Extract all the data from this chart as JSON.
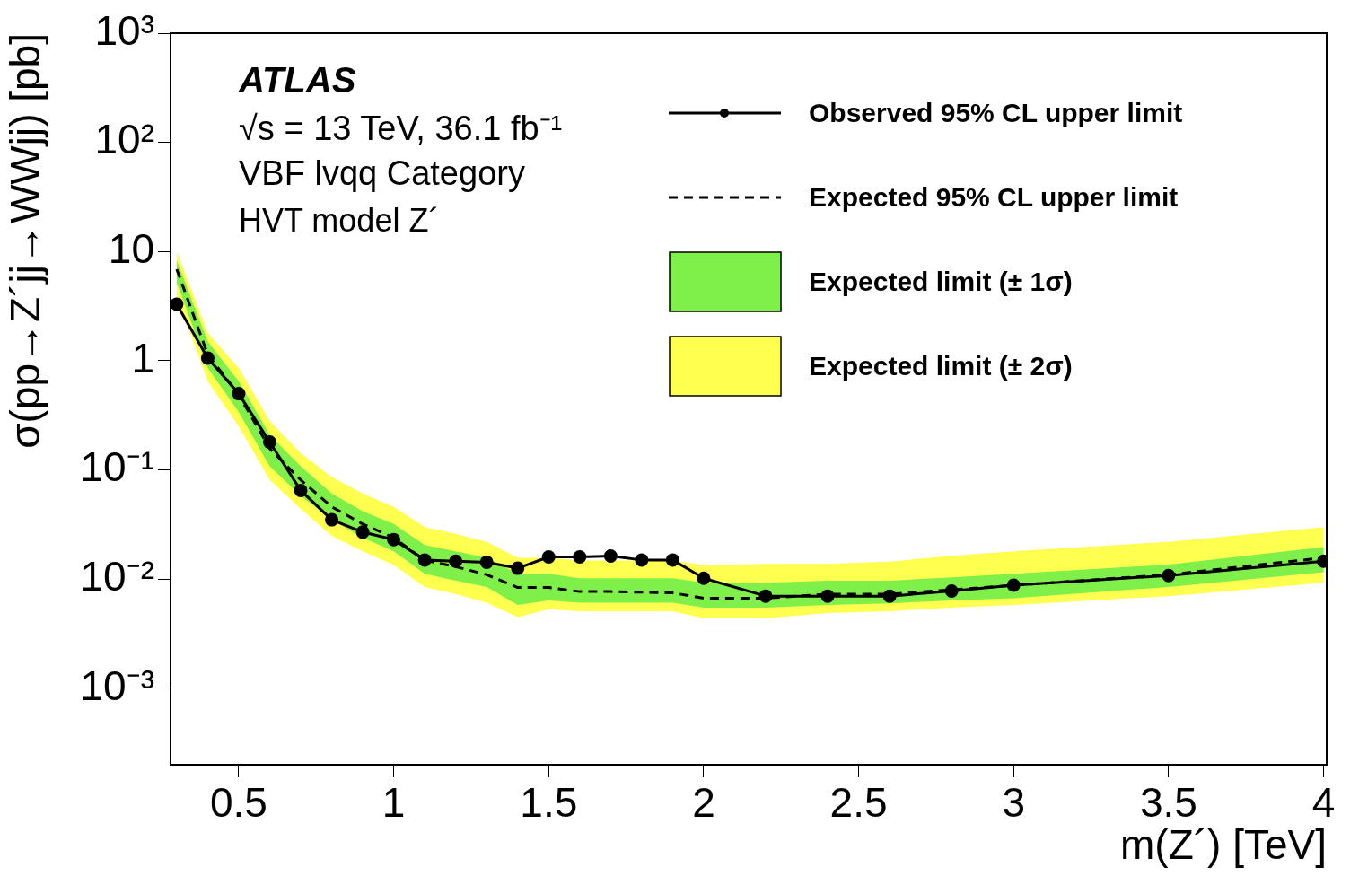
{
  "chart_data": {
    "type": "line",
    "log": "y",
    "grid": false,
    "legend": "top right",
    "xlabel": "m(Z´) [TeV]",
    "ylabel": "σ(pp→Z´jj→WWjj) [pb]",
    "annotations": [
      "ATLAS",
      "√s = 13 TeV, 36.1 fb⁻¹",
      "VBF lvqq Category",
      "HVT model Z´"
    ],
    "x": [
      0.3,
      0.4,
      0.5,
      0.6,
      0.7,
      0.8,
      0.9,
      1.0,
      1.1,
      1.2,
      1.3,
      1.4,
      1.5,
      1.6,
      1.7,
      1.8,
      1.9,
      2.0,
      2.2,
      2.4,
      2.6,
      2.8,
      3.0,
      3.5,
      4.0
    ],
    "xlim": [
      0.28,
      4.01
    ],
    "xticks": [
      0.5,
      1,
      1.5,
      2,
      2.5,
      3,
      3.5,
      4
    ],
    "ylim": [
      0.0002,
      1000
    ],
    "yticks": [
      {
        "value": 1000,
        "label": "10³"
      },
      {
        "value": 100,
        "label": "10²"
      },
      10,
      1,
      {
        "value": 0.1,
        "label": "10⁻¹"
      },
      {
        "value": 0.01,
        "label": "10⁻²"
      },
      {
        "value": 0.001,
        "label": "10⁻³"
      }
    ],
    "series": [
      {
        "name": "Expected limit (± 2σ)",
        "type": "line",
        "color": "#ffff50",
        "values": [
          null,
          null,
          null,
          null,
          null,
          null,
          null,
          null,
          null,
          null,
          null,
          null,
          null,
          null,
          null,
          null,
          null,
          null,
          null,
          null,
          null,
          null,
          null,
          null,
          null
        ],
        "lower": [
          3.9,
          0.65,
          0.25,
          0.081,
          0.044,
          0.025,
          0.018,
          0.0135,
          0.0085,
          0.0073,
          0.0061,
          0.0045,
          0.0053,
          0.0051,
          0.0051,
          0.0051,
          0.0051,
          0.0044,
          0.0044,
          0.0049,
          0.0051,
          0.0055,
          0.0058,
          0.007,
          0.0093
        ],
        "upper": [
          10,
          1.8,
          0.86,
          0.28,
          0.143,
          0.086,
          0.061,
          0.046,
          0.03,
          0.026,
          0.022,
          0.0157,
          0.0157,
          0.0148,
          0.0148,
          0.0148,
          0.0148,
          0.0134,
          0.0138,
          0.0138,
          0.0145,
          0.0164,
          0.018,
          0.022,
          0.03
        ]
      },
      {
        "name": "Expected limit (± 1σ)",
        "type": "line",
        "color": "#7ff04a",
        "values": [
          null,
          null,
          null,
          null,
          null,
          null,
          null,
          null,
          null,
          null,
          null,
          null,
          null,
          null,
          null,
          null,
          null,
          null,
          null,
          null,
          null,
          null,
          null,
          null,
          null
        ],
        "lower": [
          5.2,
          0.86,
          0.34,
          0.108,
          0.058,
          0.035,
          0.024,
          0.018,
          0.0112,
          0.0097,
          0.0085,
          0.0058,
          0.0064,
          0.0061,
          0.0061,
          0.0061,
          0.0061,
          0.0055,
          0.0055,
          0.0058,
          0.006,
          0.0064,
          0.0067,
          0.0085,
          0.0116
        ],
        "upper": [
          8.3,
          1.5,
          0.65,
          0.21,
          0.108,
          0.061,
          0.042,
          0.032,
          0.0205,
          0.018,
          0.0157,
          0.0112,
          0.0112,
          0.0102,
          0.0102,
          0.0102,
          0.0102,
          0.0093,
          0.0093,
          0.0097,
          0.0097,
          0.0104,
          0.0112,
          0.0136,
          0.0197
        ]
      },
      {
        "name": "Expected 95% CL upper limit",
        "type": "line",
        "color": "#000000",
        "line_style": "dashed",
        "marker": "none",
        "values": [
          6.9,
          1.14,
          0.49,
          0.157,
          0.081,
          0.046,
          0.032,
          0.024,
          0.0149,
          0.013,
          0.011,
          0.0084,
          0.0084,
          0.0077,
          0.0077,
          0.0076,
          0.0075,
          0.0067,
          0.0067,
          0.0073,
          0.0073,
          0.008,
          0.0088,
          0.011,
          0.0157
        ]
      },
      {
        "name": "Observed 95% CL upper limit",
        "type": "line",
        "color": "#000000",
        "line_style": "solid",
        "marker": "circle",
        "values": [
          3.3,
          1.06,
          0.5,
          0.18,
          0.065,
          0.035,
          0.027,
          0.023,
          0.015,
          0.0146,
          0.0143,
          0.0126,
          0.016,
          0.016,
          0.0163,
          0.015,
          0.015,
          0.0102,
          0.007,
          0.007,
          0.007,
          0.0078,
          0.0088,
          0.0108,
          0.0146
        ]
      }
    ]
  }
}
